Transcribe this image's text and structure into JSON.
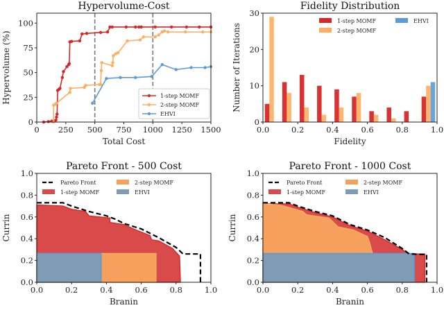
{
  "colors": {
    "red": "#d62728",
    "orange": "#fdae61",
    "blue": "#5b9bd5",
    "front": "#000000"
  },
  "chart_data": [
    {
      "type": "line",
      "title": "Hypervolume-Cost",
      "xlabel": "Total Cost",
      "ylabel": "Hypervolume (%)",
      "xlim": [
        0,
        1500
      ],
      "ylim": [
        0,
        110
      ],
      "xticks": [
        0,
        250,
        500,
        750,
        1000,
        1250,
        1500
      ],
      "yticks": [
        0,
        25,
        50,
        75,
        100
      ],
      "vlines": [
        500,
        1000
      ],
      "legend": "bottom-right",
      "series": [
        {
          "name": "1-step MOMF",
          "color": "red",
          "x": [
            60,
            100,
            130,
            150,
            165,
            170,
            175,
            180,
            190,
            200,
            220,
            230,
            260,
            275,
            280,
            285,
            300,
            370,
            390,
            430,
            550,
            610,
            630,
            650,
            770,
            850,
            880,
            900,
            1020,
            1160,
            1290,
            1400,
            1500
          ],
          "y": [
            0,
            0.5,
            1,
            1,
            2,
            5,
            8,
            32,
            33,
            34,
            45,
            51,
            56,
            58,
            59,
            81,
            81.5,
            82,
            89,
            89.5,
            90.5,
            91,
            96,
            96,
            96,
            96,
            96,
            96,
            96,
            96,
            96,
            96,
            96
          ]
        },
        {
          "name": "2-step MOMF",
          "color": "orange",
          "x": [
            145,
            145,
            160,
            170,
            285,
            290,
            410,
            420,
            540,
            550,
            555,
            560,
            650,
            655,
            660,
            680,
            700,
            780,
            890,
            920,
            1020,
            1050,
            1080,
            1100,
            1130,
            1280,
            1430,
            1500
          ],
          "y": [
            0,
            17,
            18,
            19,
            30,
            34,
            35,
            37,
            38,
            38,
            52,
            60,
            57,
            60,
            67,
            69,
            70,
            82,
            83,
            86,
            86,
            88,
            91,
            92,
            91,
            91,
            91,
            91
          ]
        },
        {
          "name": "EHVI",
          "color": "blue",
          "x": [
            480,
            600,
            720,
            850,
            990,
            1080,
            1200,
            1330,
            1450,
            1500
          ],
          "y": [
            19,
            44,
            45,
            45,
            46,
            58,
            53,
            55,
            55,
            56
          ]
        }
      ]
    },
    {
      "type": "bar",
      "title": "Fidelity Distribution",
      "xlabel": "Fidelity",
      "ylabel": "Number of Iterations",
      "xlim": [
        0,
        1.0
      ],
      "ylim": [
        0,
        30
      ],
      "xticks": [
        "0.0",
        "0.2",
        "0.4",
        "0.6",
        "0.8",
        "1.0"
      ],
      "yticks": [
        0,
        10,
        20,
        30
      ],
      "bins": [
        0.0,
        0.1,
        0.2,
        0.3,
        0.4,
        0.5,
        0.6,
        0.7,
        0.8,
        0.9
      ],
      "legend": "top-right",
      "series": [
        {
          "name": "1-step MOMF",
          "color": "red",
          "values": [
            5,
            11,
            13,
            10,
            9,
            7,
            3,
            4,
            3,
            7
          ]
        },
        {
          "name": "2-step MOMF",
          "color": "orange",
          "values": [
            29,
            8,
            4,
            2,
            4,
            8,
            2,
            1,
            0,
            10
          ]
        },
        {
          "name": "EHVI",
          "color": "blue",
          "values": [
            0,
            0,
            0,
            0,
            0,
            0,
            0,
            0,
            0,
            11
          ]
        }
      ]
    },
    {
      "type": "area",
      "title": "Pareto Front - 500 Cost",
      "xlabel": "Branin",
      "ylabel": "Currin",
      "xlim": [
        0,
        1.0
      ],
      "ylim": [
        0,
        1.0
      ],
      "xticks": [
        "0.0",
        "0.2",
        "0.4",
        "0.6",
        "0.8",
        "1.0"
      ],
      "yticks": [
        "0.0",
        "0.2",
        "0.4",
        "0.6",
        "0.8",
        "1.0"
      ],
      "legend": "top",
      "front": {
        "name": "Pareto Front",
        "x": [
          0,
          0.15,
          0.2,
          0.3,
          0.4,
          0.45,
          0.5,
          0.6,
          0.7,
          0.8,
          0.84,
          0.94,
          0.94
        ],
        "y": [
          0.73,
          0.73,
          0.7,
          0.65,
          0.61,
          0.58,
          0.54,
          0.49,
          0.41,
          0.32,
          0.26,
          0.26,
          0
        ]
      },
      "series": [
        {
          "name": "1-step MOMF",
          "color": "red",
          "x": [
            0,
            0.15,
            0.2,
            0.28,
            0.3,
            0.42,
            0.42,
            0.5,
            0.57,
            0.65,
            0.66,
            0.7,
            0.78,
            0.82,
            0.825
          ],
          "y": [
            0.71,
            0.7,
            0.67,
            0.65,
            0.61,
            0.59,
            0.55,
            0.53,
            0.48,
            0.43,
            0.39,
            0.38,
            0.31,
            0.24,
            0
          ]
        },
        {
          "name": "2-step MOMF",
          "color": "orange",
          "x": [
            0,
            0.685,
            0.685
          ],
          "y": [
            0.265,
            0.265,
            0
          ]
        },
        {
          "name": "EHVI",
          "color": "blue",
          "x": [
            0,
            0.37,
            0.37
          ],
          "y": [
            0.265,
            0.265,
            0
          ]
        }
      ]
    },
    {
      "type": "area",
      "title": "Pareto Front - 1000 Cost",
      "xlabel": "Branin",
      "ylabel": "Currin",
      "xlim": [
        0,
        1.0
      ],
      "ylim": [
        0,
        1.0
      ],
      "xticks": [
        "0.0",
        "0.2",
        "0.4",
        "0.6",
        "0.8",
        "1.0"
      ],
      "yticks": [
        "0.0",
        "0.2",
        "0.4",
        "0.6",
        "0.8",
        "1.0"
      ],
      "legend": "top",
      "front": {
        "name": "Pareto Front",
        "x": [
          0,
          0.15,
          0.2,
          0.3,
          0.4,
          0.45,
          0.5,
          0.6,
          0.7,
          0.8,
          0.84,
          0.94,
          0.94
        ],
        "y": [
          0.73,
          0.73,
          0.7,
          0.65,
          0.61,
          0.57,
          0.53,
          0.48,
          0.41,
          0.31,
          0.26,
          0.255,
          0
        ]
      },
      "series": [
        {
          "name": "1-step MOMF",
          "color": "red",
          "x": [
            0,
            0.15,
            0.2,
            0.3,
            0.4,
            0.45,
            0.5,
            0.6,
            0.7,
            0.8,
            0.84,
            0.93,
            0.93
          ],
          "y": [
            0.72,
            0.72,
            0.69,
            0.64,
            0.6,
            0.56,
            0.52,
            0.47,
            0.39,
            0.3,
            0.26,
            0.26,
            0
          ]
        },
        {
          "name": "2-step MOMF",
          "color": "orange",
          "x": [
            0,
            0.1,
            0.23,
            0.25,
            0.38,
            0.43,
            0.52,
            0.6,
            0.61,
            0.63,
            0.84,
            0.84
          ],
          "y": [
            0.72,
            0.71,
            0.65,
            0.62,
            0.59,
            0.51,
            0.48,
            0.42,
            0.38,
            0.26,
            0.26,
            0
          ]
        },
        {
          "name": "EHVI",
          "color": "blue",
          "x": [
            0,
            0.87,
            0.87
          ],
          "y": [
            0.265,
            0.265,
            0
          ]
        }
      ]
    }
  ]
}
